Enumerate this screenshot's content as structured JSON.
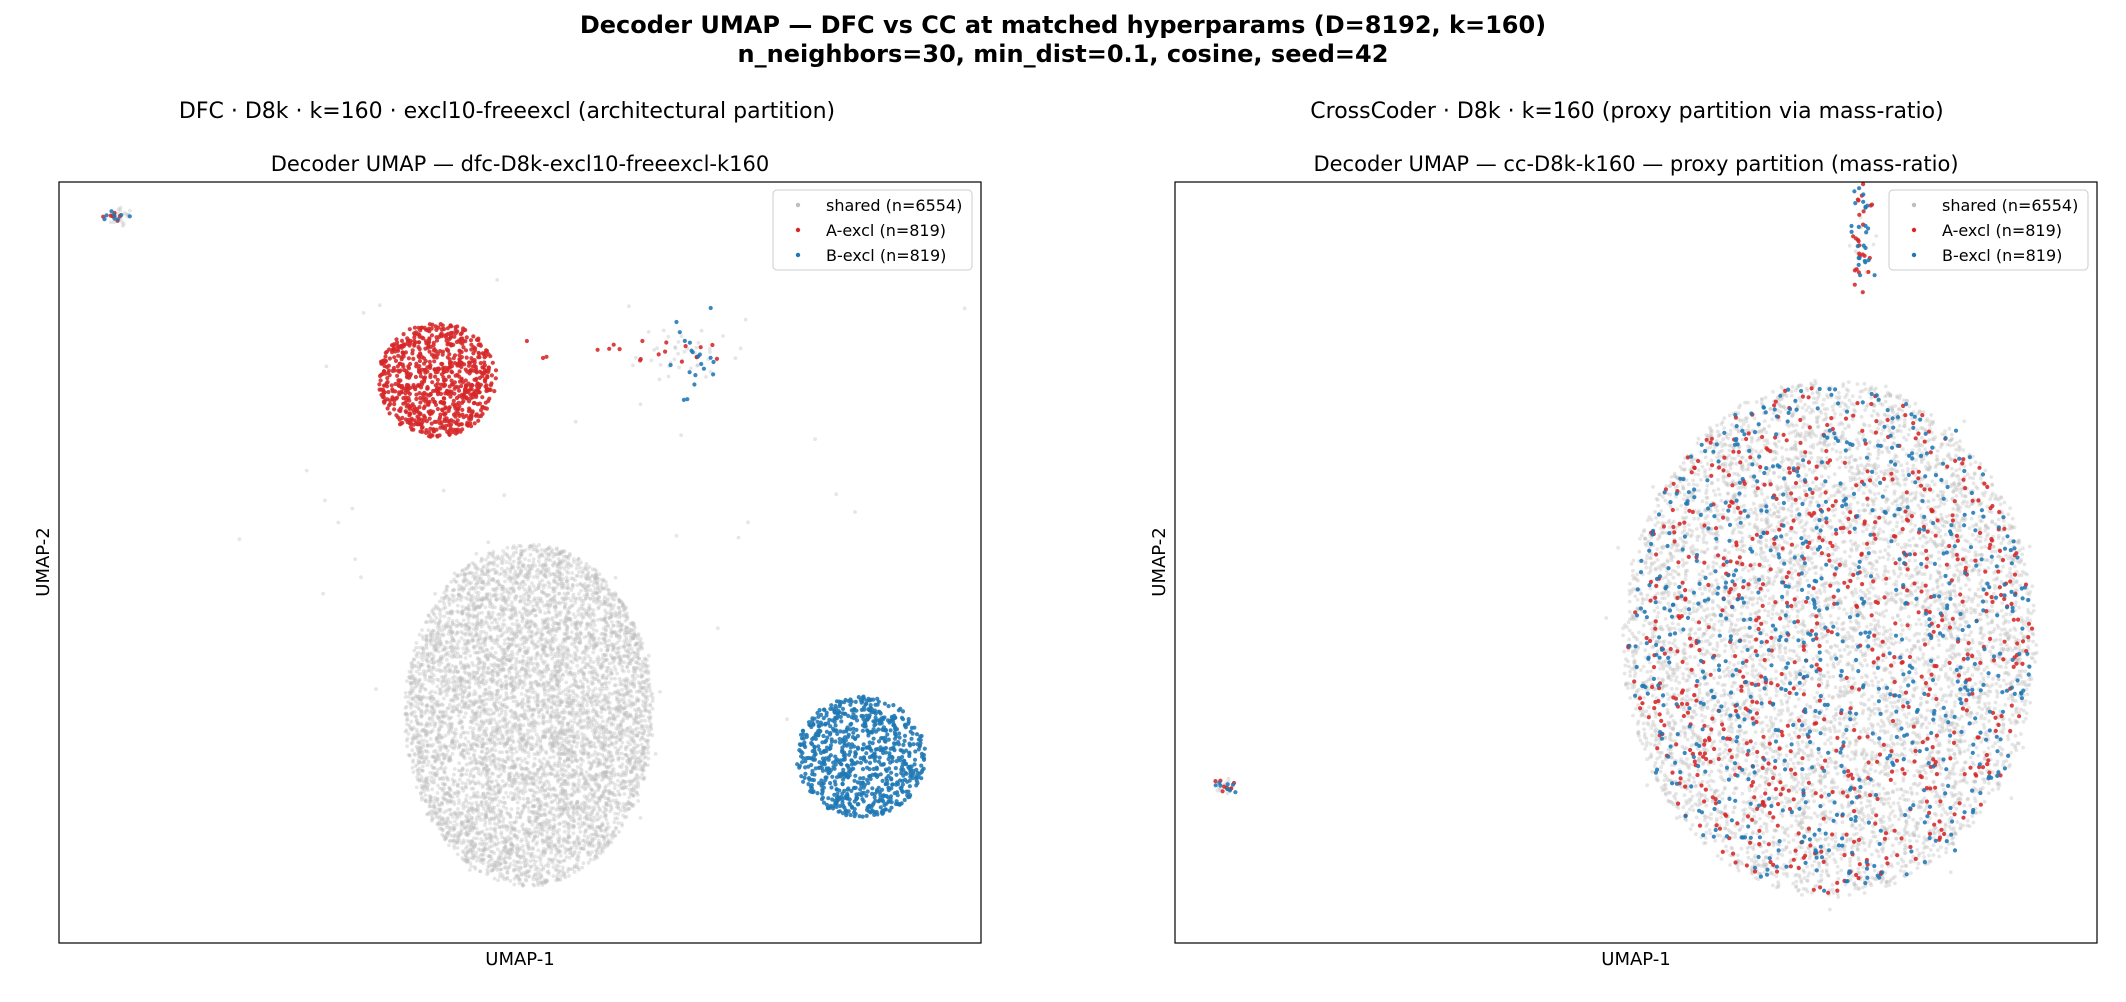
{
  "figure": {
    "suptitle_line1": "Decoder UMAP — DFC vs CC at matched hyperparams (D=8192, k=160)",
    "suptitle_line2": "n_neighbors=30, min_dist=0.1, cosine, seed=42"
  },
  "colors": {
    "shared": "#bdbdbd",
    "A-excl": "#d62728",
    "B-excl": "#1f77b4"
  },
  "chart_data": [
    {
      "type": "scatter",
      "column_title": "DFC · D8k · k=160 · excl10-freeexcl  (architectural partition)",
      "title": "Decoder UMAP — dfc-D8k-excl10-freeexcl-k160",
      "xlabel": "UMAP-1",
      "ylabel": "UMAP-2",
      "xticks": false,
      "yticks": false,
      "legend_position": "upper right",
      "legend": [
        "shared (n=6554)",
        "A-excl (n=819)",
        "B-excl (n=819)"
      ],
      "xlim": [
        0,
        100
      ],
      "ylim": [
        0,
        100
      ],
      "series": [
        {
          "name": "shared (n=6554)",
          "n": 6554,
          "clusters": [
            {
              "cx": 51,
              "cy": 30,
              "sx": 13.5,
              "sy": 22.5,
              "frac": 0.985,
              "shape": "disk"
            },
            {
              "cx": 69,
              "cy": 77.3,
              "sx": 3,
              "sy": 2,
              "frac": 0.006,
              "shape": "gauss"
            },
            {
              "cx": 6.5,
              "cy": 95.3,
              "sx": 0.6,
              "sy": 0.6,
              "frac": 0.003,
              "shape": "gauss"
            },
            {
              "cx": 55,
              "cy": 65,
              "sx": 25,
              "sy": 15,
              "frac": 0.006,
              "shape": "gauss"
            }
          ]
        },
        {
          "name": "A-excl (n=819)",
          "n": 819,
          "clusters": [
            {
              "cx": 41,
              "cy": 74,
              "sx": 6.5,
              "sy": 7.5,
              "frac": 0.965,
              "shape": "disk"
            },
            {
              "cx": 62,
              "cy": 77.5,
              "sx": 5,
              "sy": 1,
              "frac": 0.025,
              "shape": "gauss"
            },
            {
              "cx": 6,
              "cy": 95.5,
              "sx": 0.5,
              "sy": 0.4,
              "frac": 0.01,
              "shape": "gauss"
            }
          ]
        },
        {
          "name": "B-excl (n=819)",
          "n": 819,
          "clusters": [
            {
              "cx": 87,
              "cy": 24.5,
              "sx": 7,
              "sy": 8,
              "frac": 0.965,
              "shape": "disk"
            },
            {
              "cx": 68.5,
              "cy": 76.5,
              "sx": 1.2,
              "sy": 2.5,
              "frac": 0.025,
              "shape": "gauss"
            },
            {
              "cx": 6,
              "cy": 95.5,
              "sx": 0.5,
              "sy": 0.4,
              "frac": 0.01,
              "shape": "gauss"
            }
          ]
        }
      ]
    },
    {
      "type": "scatter",
      "column_title": "CrossCoder · D8k · k=160  (proxy partition via mass-ratio)",
      "title": "Decoder UMAP — cc-D8k-k160 — proxy partition (mass-ratio)",
      "xlabel": "UMAP-1",
      "ylabel": "UMAP-2",
      "xticks": false,
      "yticks": false,
      "legend_position": "upper right",
      "legend": [
        "shared (n=6554)",
        "A-excl (n=819)",
        "B-excl (n=819)"
      ],
      "xlim": [
        0,
        100
      ],
      "ylim": [
        0,
        100
      ],
      "series": [
        {
          "name": "shared (n=6554)",
          "n": 6554,
          "clusters": [
            {
              "cx": 71,
              "cy": 40,
              "sx": 22.5,
              "sy": 34,
              "frac": 0.996,
              "shape": "disk"
            },
            {
              "cx": 74.5,
              "cy": 94,
              "sx": 0.6,
              "sy": 3.5,
              "frac": 0.002,
              "shape": "gauss"
            },
            {
              "cx": 5.5,
              "cy": 20.5,
              "sx": 0.5,
              "sy": 0.4,
              "frac": 0.002,
              "shape": "gauss"
            }
          ]
        },
        {
          "name": "A-excl (n=819)",
          "n": 819,
          "clusters": [
            {
              "cx": 71,
              "cy": 40,
              "sx": 22,
              "sy": 33.5,
              "frac": 0.96,
              "shape": "disk"
            },
            {
              "cx": 74.5,
              "cy": 94,
              "sx": 0.6,
              "sy": 3.5,
              "frac": 0.03,
              "shape": "gauss"
            },
            {
              "cx": 5.5,
              "cy": 20.5,
              "sx": 0.5,
              "sy": 0.4,
              "frac": 0.01,
              "shape": "gauss"
            }
          ]
        },
        {
          "name": "B-excl (n=819)",
          "n": 819,
          "clusters": [
            {
              "cx": 71,
              "cy": 40,
              "sx": 22,
              "sy": 33.5,
              "frac": 0.96,
              "shape": "disk"
            },
            {
              "cx": 74.5,
              "cy": 94,
              "sx": 0.6,
              "sy": 3.5,
              "frac": 0.03,
              "shape": "gauss"
            },
            {
              "cx": 5.5,
              "cy": 20.5,
              "sx": 0.5,
              "sy": 0.4,
              "frac": 0.01,
              "shape": "gauss"
            }
          ]
        }
      ]
    }
  ]
}
